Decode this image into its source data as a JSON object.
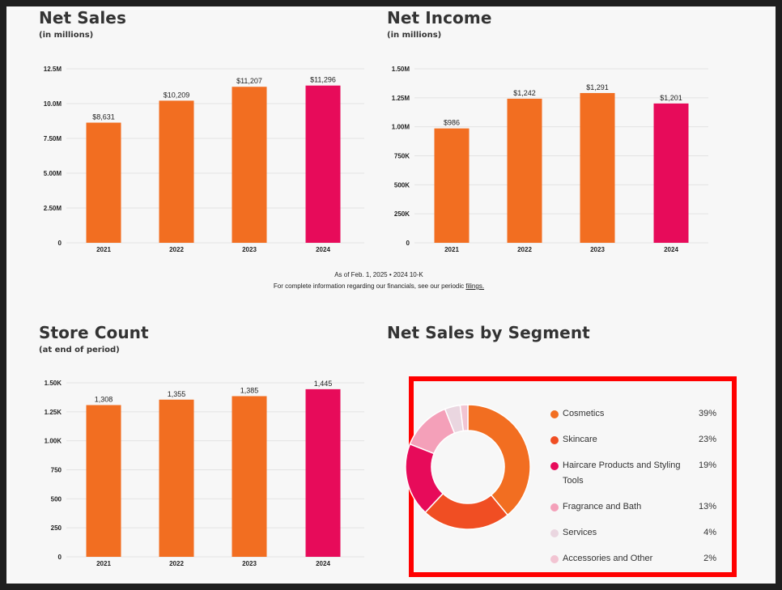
{
  "panels": {
    "net_sales": {
      "title": "Net Sales",
      "subtitle": "(in millions)"
    },
    "net_income": {
      "title": "Net Income",
      "subtitle": "(in millions)"
    },
    "store_count": {
      "title": "Store Count",
      "subtitle": "(at end of period)"
    },
    "segment": {
      "title": "Net Sales by Segment"
    }
  },
  "footnote": {
    "line1": "As of Feb. 1, 2025 • 2024 10-K",
    "line2_prefix": "For complete information regarding our financials, see our periodic ",
    "line2_link": "filings."
  },
  "colors": {
    "primary": "#f26e21",
    "latest": "#e70b5a"
  },
  "chart_data": [
    {
      "type": "bar",
      "title": "Net Sales",
      "categories": [
        "2021",
        "2022",
        "2023",
        "2024"
      ],
      "values": [
        8631,
        10209,
        11207,
        11296
      ],
      "value_labels": [
        "$8,631",
        "$10,209",
        "$11,207",
        "$11,296"
      ],
      "ylim": [
        0,
        12500
      ],
      "yticks": [
        0,
        2500,
        5000,
        7500,
        10000,
        12500
      ],
      "ytick_labels": [
        "0",
        "2.50M",
        "5.00M",
        "7.50M",
        "10.0M",
        "12.5M"
      ],
      "grid": true
    },
    {
      "type": "bar",
      "title": "Net Income",
      "categories": [
        "2021",
        "2022",
        "2023",
        "2024"
      ],
      "values": [
        986,
        1242,
        1291,
        1201
      ],
      "value_labels": [
        "$986",
        "$1,242",
        "$1,291",
        "$1,201"
      ],
      "ylim": [
        0,
        1500
      ],
      "yticks": [
        0,
        250,
        500,
        750,
        1000,
        1250,
        1500
      ],
      "ytick_labels": [
        "0",
        "250K",
        "500K",
        "750K",
        "1.00M",
        "1.25M",
        "1.50M"
      ],
      "grid": true
    },
    {
      "type": "bar",
      "title": "Store Count",
      "categories": [
        "2021",
        "2022",
        "2023",
        "2024"
      ],
      "values": [
        1308,
        1355,
        1385,
        1445
      ],
      "value_labels": [
        "1,308",
        "1,355",
        "1,385",
        "1,445"
      ],
      "ylim": [
        0,
        1500
      ],
      "yticks": [
        0,
        250,
        500,
        750,
        1000,
        1250,
        1500
      ],
      "ytick_labels": [
        "0",
        "250",
        "500",
        "750",
        "1.00K",
        "1.25K",
        "1.50K"
      ],
      "grid": true
    },
    {
      "type": "pie",
      "title": "Net Sales by Segment",
      "donut": true,
      "slices": [
        {
          "label": "Cosmetics",
          "value": 39,
          "pct": "39%",
          "color": "#f26e21"
        },
        {
          "label": "Skincare",
          "value": 23,
          "pct": "23%",
          "color": "#f04e23"
        },
        {
          "label": "Haircare Products and Styling Tools",
          "value": 19,
          "pct": "19%",
          "color": "#e70b5a"
        },
        {
          "label": "Fragrance and Bath",
          "value": 13,
          "pct": "13%",
          "color": "#f4a0b9"
        },
        {
          "label": "Services",
          "value": 4,
          "pct": "4%",
          "color": "#ead6e0"
        },
        {
          "label": "Accessories and Other",
          "value": 2,
          "pct": "2%",
          "color": "#f2c4d2"
        }
      ],
      "legend_position": "right"
    }
  ]
}
